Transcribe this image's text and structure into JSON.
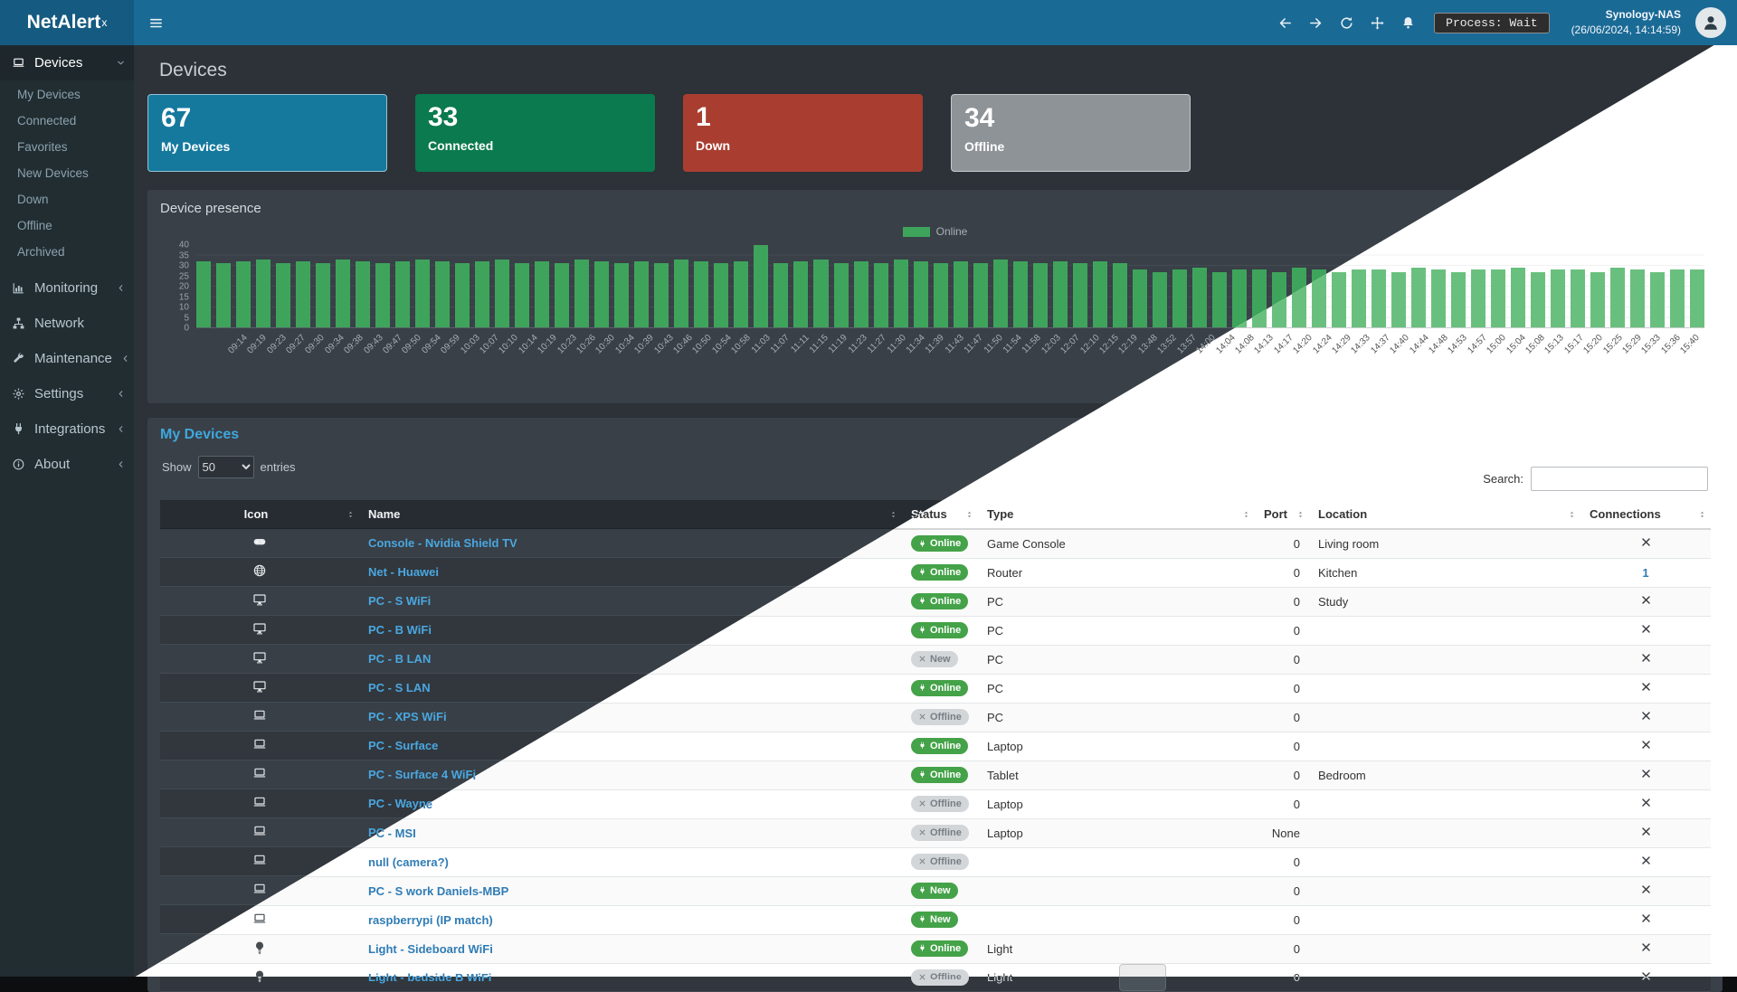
{
  "app": {
    "logo_text": "NetAlert",
    "logo_sup": "x"
  },
  "topbar": {
    "menu_toggle_icon": "bars",
    "icons": [
      {
        "name": "back",
        "icon": "arrow-left"
      },
      {
        "name": "forward",
        "icon": "arrow-right"
      },
      {
        "name": "refresh",
        "icon": "refresh"
      },
      {
        "name": "move",
        "icon": "move"
      },
      {
        "name": "notifications",
        "icon": "bell"
      }
    ],
    "process_badge": "Process: Wait",
    "host_name": "Synology-NAS",
    "host_time": "(26/06/2024, 14:14:59)",
    "avatar_icon": "user"
  },
  "sidebar": {
    "items": [
      {
        "label": "Devices",
        "icon": "laptop",
        "active": true,
        "expandable": true,
        "expanded": true,
        "children": [
          "My Devices",
          "Connected",
          "Favorites",
          "New Devices",
          "Down",
          "Offline",
          "Archived"
        ]
      },
      {
        "label": "Monitoring",
        "icon": "chart",
        "expandable": true
      },
      {
        "label": "Network",
        "icon": "network",
        "expandable": false
      },
      {
        "label": "Maintenance",
        "icon": "wrench",
        "expandable": true
      },
      {
        "label": "Settings",
        "icon": "gear",
        "expandable": true
      },
      {
        "label": "Integrations",
        "icon": "plug",
        "expandable": true
      },
      {
        "label": "About",
        "icon": "info",
        "expandable": true
      }
    ]
  },
  "page": {
    "title": "Devices"
  },
  "stat_cards": [
    {
      "value": "67",
      "label": "My Devices",
      "icon": "laptop",
      "color": "#15799e"
    },
    {
      "value": "33",
      "label": "Connected",
      "icon": "plug",
      "color": "#0b7a4e"
    },
    {
      "value": "1",
      "label": "Down",
      "icon": "warning",
      "color": "#a93e30"
    },
    {
      "value": "34",
      "label": "Offline",
      "icon": "close",
      "color": "#8e9397"
    }
  ],
  "presence_panel": {
    "title": "Device presence"
  },
  "chart_data": {
    "type": "bar",
    "title": "Device presence",
    "series_label": "Online",
    "legend_position": "top",
    "grid": false,
    "ylim": [
      0,
      40
    ],
    "yticks": [
      0,
      5,
      10,
      15,
      20,
      25,
      30,
      35,
      40
    ],
    "x": [
      "09:14",
      "09:19",
      "09:23",
      "09:27",
      "09:30",
      "09:34",
      "09:38",
      "09:43",
      "09:47",
      "09:50",
      "09:54",
      "09:59",
      "10:03",
      "10:07",
      "10:10",
      "10:14",
      "10:19",
      "10:23",
      "10:26",
      "10:30",
      "10:34",
      "10:39",
      "10:43",
      "10:46",
      "10:50",
      "10:54",
      "10:58",
      "11:03",
      "11:07",
      "11:11",
      "11:15",
      "11:19",
      "11:23",
      "11:27",
      "11:30",
      "11:34",
      "11:39",
      "11:43",
      "11:47",
      "11:50",
      "11:54",
      "11:58",
      "12:03",
      "12:07",
      "12:10",
      "12:15",
      "12:19",
      "13:48",
      "13:52",
      "13:57",
      "14:00",
      "14:04",
      "14:08",
      "14:13",
      "14:17",
      "14:20",
      "14:24",
      "14:29",
      "14:33",
      "14:37",
      "14:40",
      "14:44",
      "14:48",
      "14:53",
      "14:57",
      "15:00",
      "15:04",
      "15:08",
      "15:13",
      "15:17",
      "15:20",
      "15:25",
      "15:29",
      "15:33",
      "15:36",
      "15:40"
    ],
    "series": [
      {
        "name": "Online",
        "color_dark": "#3fa45b",
        "color_light": "#69c07e",
        "values": [
          32,
          31,
          32,
          33,
          31,
          32,
          31,
          33,
          32,
          31,
          32,
          33,
          32,
          31,
          32,
          33,
          31,
          32,
          31,
          33,
          32,
          31,
          32,
          31,
          33,
          32,
          31,
          32,
          40,
          31,
          32,
          33,
          31,
          32,
          31,
          33,
          32,
          31,
          32,
          31,
          33,
          32,
          31,
          32,
          31,
          32,
          31,
          28,
          27,
          28,
          29,
          27,
          28,
          28,
          27,
          29,
          28,
          27,
          28,
          28,
          27,
          29,
          28,
          27,
          28,
          28,
          29,
          27,
          28,
          28,
          27,
          29,
          28,
          27,
          28,
          28
        ]
      }
    ]
  },
  "devices_panel": {
    "title": "My Devices",
    "show_label": "Show",
    "page_size": "50",
    "entries_label": "entries",
    "search_label": "Search:",
    "columns": [
      "Icon",
      "Name",
      "Status",
      "Type",
      "Port",
      "Location",
      "Connections"
    ],
    "rows": [
      {
        "icon": "gamepad",
        "name": "Console - Nvidia Shield TV",
        "status": "Online",
        "status_kind": "success",
        "status_icon": "plug",
        "type": "Game Console",
        "port": "0",
        "location": "Living room",
        "connections": "✕"
      },
      {
        "icon": "globe",
        "name": "Net - Huawei",
        "status": "Online",
        "status_kind": "success",
        "status_icon": "plug",
        "type": "Router",
        "port": "0",
        "location": "Kitchen",
        "connections": "1"
      },
      {
        "icon": "desktop",
        "name": "PC - S WiFi",
        "status": "Online",
        "status_kind": "success",
        "status_icon": "plug",
        "type": "PC",
        "port": "0",
        "location": "Study",
        "connections": "✕"
      },
      {
        "icon": "desktop",
        "name": "PC - B WiFi",
        "status": "Online",
        "status_kind": "success",
        "status_icon": "plug",
        "type": "PC",
        "port": "0",
        "location": "",
        "connections": "✕"
      },
      {
        "icon": "desktop",
        "name": "PC - B LAN",
        "status": "New",
        "status_kind": "muted",
        "status_icon": "close",
        "type": "PC",
        "port": "0",
        "location": "",
        "connections": "✕"
      },
      {
        "icon": "desktop",
        "name": "PC - S LAN",
        "status": "Online",
        "status_kind": "success",
        "status_icon": "plug",
        "type": "PC",
        "port": "0",
        "location": "",
        "connections": "✕"
      },
      {
        "icon": "laptop",
        "name": "PC - XPS WiFi",
        "status": "Offline",
        "status_kind": "muted",
        "status_icon": "close",
        "type": "PC",
        "port": "0",
        "location": "",
        "connections": "✕"
      },
      {
        "icon": "laptop",
        "name": "PC - Surface",
        "status": "Online",
        "status_kind": "success",
        "status_icon": "plug",
        "type": "Laptop",
        "port": "0",
        "location": "",
        "connections": "✕"
      },
      {
        "icon": "laptop",
        "name": "PC - Surface 4 WiFi",
        "status": "Online",
        "status_kind": "success",
        "status_icon": "plug",
        "type": "Tablet",
        "port": "0",
        "location": "Bedroom",
        "connections": "✕"
      },
      {
        "icon": "laptop",
        "name": "PC - Wayne",
        "status": "Offline",
        "status_kind": "muted",
        "status_icon": "close",
        "type": "Laptop",
        "port": "0",
        "location": "",
        "connections": "✕"
      },
      {
        "icon": "laptop",
        "name": "PC - MSI",
        "status": "Offline",
        "status_kind": "muted",
        "status_icon": "close",
        "type": "Laptop",
        "port": "None",
        "location": "",
        "connections": "✕"
      },
      {
        "icon": "laptop",
        "name": "null (camera?)",
        "status": "Offline",
        "status_kind": "muted",
        "status_icon": "close",
        "type": "",
        "port": "0",
        "location": "",
        "connections": "✕"
      },
      {
        "icon": "laptop",
        "name": "PC - S work Daniels-MBP",
        "status": "New",
        "status_kind": "success",
        "status_icon": "plug",
        "type": "",
        "port": "0",
        "location": "",
        "connections": "✕"
      },
      {
        "icon": "laptop",
        "name": "raspberrypi (IP match)",
        "status": "New",
        "status_kind": "success",
        "status_icon": "plug",
        "type": "",
        "port": "0",
        "location": "",
        "connections": "✕"
      },
      {
        "icon": "lightbulb",
        "name": "Light - Sideboard WiFi",
        "status": "Online",
        "status_kind": "success",
        "status_icon": "plug",
        "type": "Light",
        "port": "0",
        "location": "",
        "connections": "✕"
      },
      {
        "icon": "lightbulb",
        "name": "Light - bedside B WiFi",
        "status": "Offline",
        "status_kind": "muted",
        "status_icon": "close",
        "type": "Light",
        "port": "0",
        "location": "",
        "connections": "✕"
      }
    ]
  },
  "theme": {
    "topbar_blue": "#1a6a96",
    "sidebar_bg": "#222d32",
    "dark_page_bg": "#2c3237",
    "dark_panel_bg": "#394048",
    "accent_blue": "#3fa7dd",
    "online_green": "#44a248",
    "offline_gray": "#d3d6d9",
    "link_dark": "#4aa7e0",
    "link_light": "#2f7cb5"
  }
}
